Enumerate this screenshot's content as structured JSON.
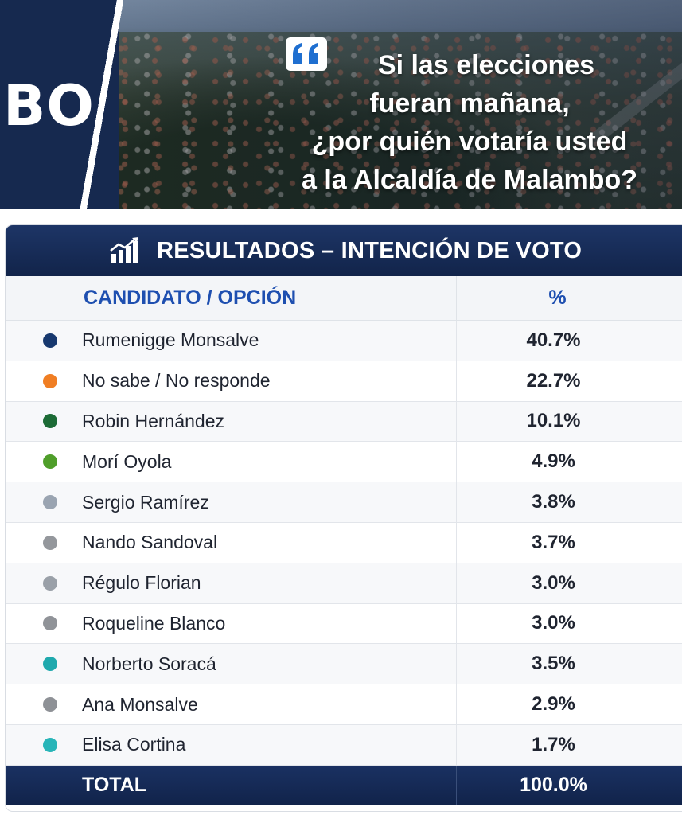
{
  "header": {
    "city_fragment": "BO",
    "question_lines": [
      "Si las elecciones",
      "fueran mañana,",
      "¿por quién votaría usted",
      "a la Alcaldía de Malambo?"
    ]
  },
  "table": {
    "title": "RESULTADOS – INTENCIÓN DE VOTO",
    "col_name_header": "CANDIDATO / OPCIÓN",
    "col_pct_header": "%",
    "total_label": "TOTAL",
    "total_value": "100.0%"
  },
  "chart_data": {
    "type": "table",
    "title": "RESULTADOS – INTENCIÓN DE VOTO",
    "columns": [
      "CANDIDATO / OPCIÓN",
      "%"
    ],
    "rows": [
      {
        "name": "Rumenigge Monsalve",
        "value": 40.7,
        "label": "40.7%",
        "color": "#17386e"
      },
      {
        "name": "No sabe / No responde",
        "value": 22.7,
        "label": "22.7%",
        "color": "#f07e23"
      },
      {
        "name": "Robin Hernández",
        "value": 10.1,
        "label": "10.1%",
        "color": "#1c6b36"
      },
      {
        "name": "Morí Oyola",
        "value": 4.9,
        "label": "4.9%",
        "color": "#4f9e2a"
      },
      {
        "name": "Sergio Ramírez",
        "value": 3.8,
        "label": "3.8%",
        "color": "#9aa4b1"
      },
      {
        "name": "Nando Sandoval",
        "value": 3.7,
        "label": "3.7%",
        "color": "#94979c"
      },
      {
        "name": "Régulo Florian",
        "value": 3.0,
        "label": "3.0%",
        "color": "#9aa0a8"
      },
      {
        "name": "Roqueline Blanco",
        "value": 3.0,
        "label": "3.0%",
        "color": "#909398"
      },
      {
        "name": "Norberto Soracá",
        "value": 3.5,
        "label": "3.5%",
        "color": "#1fa9ad"
      },
      {
        "name": "Ana Monsalve",
        "value": 2.9,
        "label": "2.9%",
        "color": "#8e9196"
      },
      {
        "name": "Elisa Cortina",
        "value": 1.7,
        "label": "1.7%",
        "color": "#28b5b8"
      }
    ],
    "total": {
      "label": "TOTAL",
      "value": 100.0,
      "display": "100.0%"
    }
  }
}
